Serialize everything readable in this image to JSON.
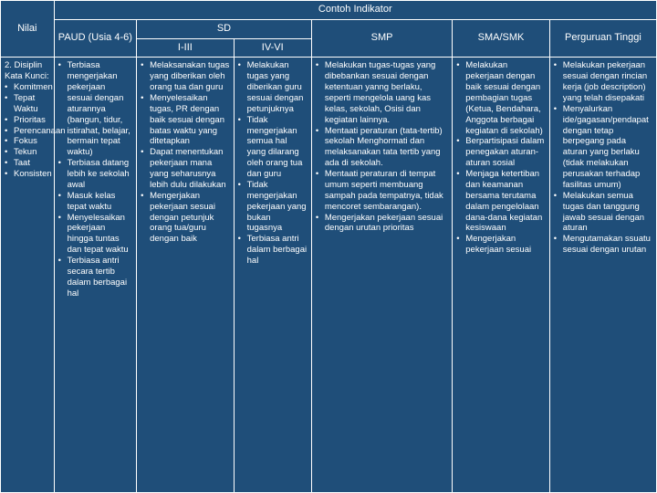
{
  "colors": {
    "background": "#1f4e79",
    "border": "#ffffff",
    "text": "#ffffff"
  },
  "headers": {
    "nilai": "Nilai",
    "contoh": "Contoh Indikator",
    "paud": "PAUD (Usia 4-6)",
    "sd": "SD",
    "smp": "SMP",
    "sma": "SMA/SMK",
    "pt": "Perguruan Tinggi",
    "sd_i_iii": "I-III",
    "sd_iv_vi": "IV-VI"
  },
  "row": {
    "nilai_title": "2. Disiplin",
    "nilai_blank": "",
    "nilai_kata": "Kata Kunci:",
    "nilai_items": {
      "0": "Komitmen",
      "1": "Tepat Waktu",
      "2": "Prioritas",
      "3": "Perencanaan",
      "4": "Fokus",
      "5": "Tekun",
      "6": "Taat",
      "7": "Konsisten"
    },
    "paud_items": {
      "0": "Terbiasa mengerjakan pekerjaan sesuai dengan aturannya (bangun, tidur, istirahat, belajar, bermain tepat waktu)",
      "1": "Terbiasa datang lebih ke sekolah awal",
      "2": "Masuk kelas tepat waktu",
      "3": "Menyelesaikan pekerjaan hingga tuntas dan tepat waktu",
      "4": "Terbiasa antri secara tertib dalam berbagai hal"
    },
    "sd1_items": {
      "0": "Melaksanakan tugas yang diberikan oleh orang tua dan guru",
      "1": "Menyelesaikan tugas, PR dengan baik sesuai dengan batas waktu yang ditetapkan",
      "2": "Dapat menentukan pekerjaan mana yang seharusnya lebih dulu dilakukan",
      "3": "Mengerjakan pekerjaan sesuai dengan petunjuk orang tua/guru dengan baik"
    },
    "sd2_items": {
      "0": "Melakukan tugas yang diberikan guru sesuai dengan petunjuknya",
      "1": "Tidak mengerjakan semua hal yang dilarang oleh orang tua dan guru",
      "2": "Tidak mengerjakan pekerjaan yang bukan tugasnya",
      "3": "Terbiasa antri dalam berbagai hal"
    },
    "smp_items": {
      "0": "Melakukan tugas-tugas yang dibebankan sesuai dengan ketentuan yanng berlaku, seperti mengelola uang kas kelas, sekolah, Osisi dan kegiatan lainnya.",
      "1": "Mentaati peraturan (tata-tertib) sekolah Menghormati dan melaksanakan tata tertib yang ada di sekolah.",
      "2": "Mentaati peraturan di tempat umum seperti membuang sampah pada tempatnya, tidak mencoret sembarangan).",
      "3": "Mengerjakan pekerjaan sesuai dengan urutan prioritas"
    },
    "sma_items": {
      "0": "Melakukan pekerjaan dengan baik sesuai dengan pembagian tugas (Ketua, Bendahara, Anggota berbagai kegiatan di sekolah)",
      "1": "Berpartisipasi dalam penegakan aturan-aturan sosial",
      "2": "Menjaga ketertiban dan keamanan bersama terutama dalam pengelolaan dana-dana kegiatan kesiswaan",
      "3": "Mengerjakan pekerjaan sesuai"
    },
    "pt_items": {
      "0": "Melakukan pekerjaan sesuai dengan rincian kerja (job description) yang telah disepakati",
      "1": "Menyalurkan ide/gagasan/pendapat dengan tetap berpegang pada aturan yang berlaku (tidak melakukan perusakan terhadap fasilitas umum)",
      "2": "Melakukan semua tugas dan tanggung jawab sesuai dengan aturan",
      "3": "Mengutamakan ssuatu sesuai dengan urutan"
    }
  }
}
